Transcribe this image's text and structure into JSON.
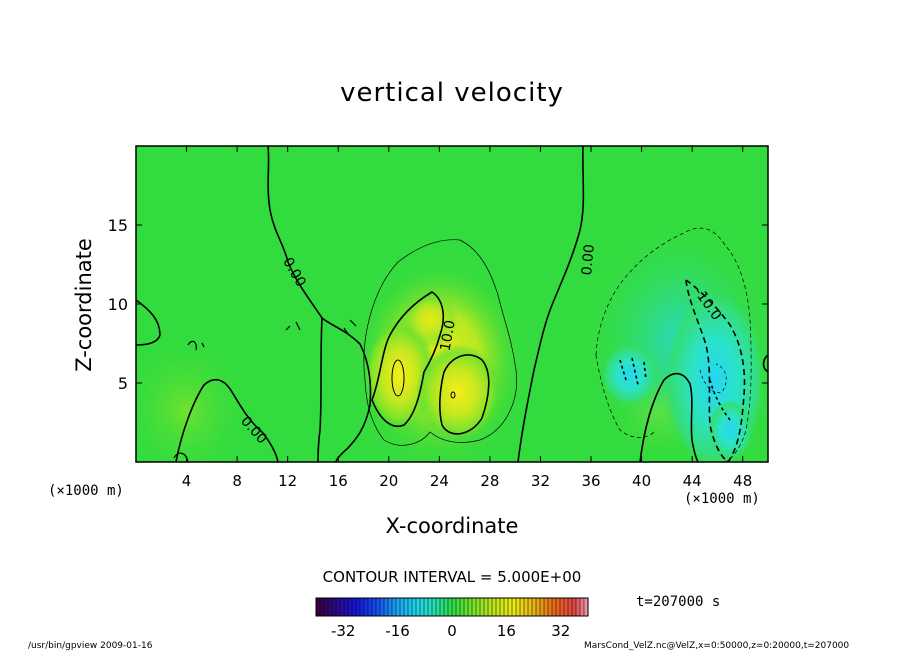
{
  "chart_data": {
    "type": "heatmap",
    "title": "vertical velocity",
    "xlabel": "X-coordinate",
    "ylabel": "Z-coordinate",
    "x_unit": "(×1000 m)",
    "xlim": [
      0,
      50
    ],
    "ylim": [
      0,
      20
    ],
    "x_ticks": [
      4,
      8,
      12,
      16,
      20,
      24,
      28,
      32,
      36,
      40,
      44,
      48
    ],
    "y_ticks": [
      5,
      10,
      15
    ],
    "colorbar": {
      "min": -40,
      "max": 40,
      "ticks": [
        -32,
        -16,
        0,
        16,
        32
      ],
      "tick_labels": [
        "-32",
        "-16",
        "0",
        "16",
        "32"
      ]
    },
    "contour_labels": [
      {
        "text": "0.00",
        "x": 12.5,
        "z": 12.0,
        "angle": 60
      },
      {
        "text": "0.00",
        "x": 9.3,
        "z": 2.0,
        "angle": 48
      },
      {
        "text": "0.00",
        "x": 35.8,
        "z": 12.8,
        "angle": -85
      },
      {
        "text": "10.0",
        "x": 24.7,
        "z": 8.0,
        "angle": -80
      },
      {
        "text": "-10.0",
        "x": 45.2,
        "z": 10.0,
        "angle": 55
      }
    ],
    "contour_interval": "CONTOUR INTERVAL = 5.000E+00",
    "features": [
      {
        "kind": "updraft core",
        "x": 20.8,
        "z": 5.5,
        "w": 14
      },
      {
        "kind": "updraft core",
        "x": 25.2,
        "z": 4.5,
        "w": 13
      },
      {
        "kind": "downdraft core",
        "x": 46.2,
        "z": 4.8,
        "w": -17
      }
    ],
    "time": "t=207000 s"
  },
  "colors": {
    "background_field": "#2fdc3c",
    "updraft": "#f2ee10",
    "downdraft": "#22e2e4"
  },
  "footer": {
    "left": "/usr/bin/gpview   2009-01-16",
    "right": "MarsCond_VelZ.nc@VelZ,x=0:50000,z=0:20000,t=207000"
  }
}
